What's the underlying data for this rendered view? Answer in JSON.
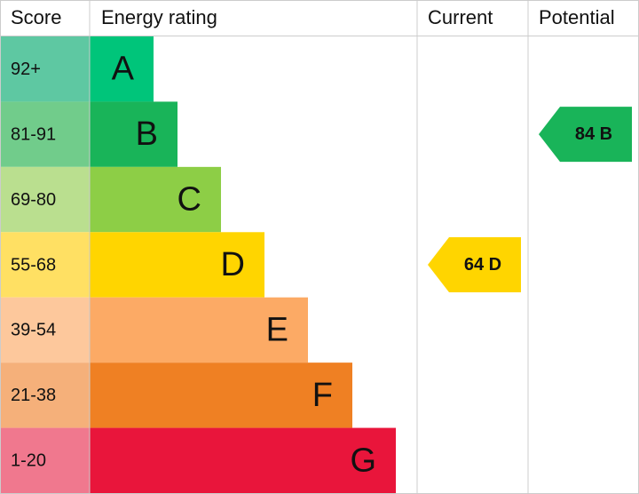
{
  "headers": [
    "Score",
    "Energy rating",
    "Current",
    "Potential"
  ],
  "bands": [
    {
      "score": "92+",
      "rating": "A",
      "color": "#00c57a",
      "score_color": "#5ec8a2"
    },
    {
      "score": "81-91",
      "rating": "B",
      "color": "#19b459",
      "score_color": "#71cc8b"
    },
    {
      "score": "69-80",
      "rating": "C",
      "color": "#8dce46",
      "score_color": "#badf8f"
    },
    {
      "score": "55-68",
      "rating": "D",
      "color": "#ffd500",
      "score_color": "#ffe063"
    },
    {
      "score": "39-54",
      "rating": "E",
      "color": "#fcaa65",
      "score_color": "#fdc89c"
    },
    {
      "score": "21-38",
      "rating": "F",
      "color": "#ef8023",
      "score_color": "#f5b07a"
    },
    {
      "score": "1-20",
      "rating": "G",
      "color": "#e9153b",
      "score_color": "#f0788e"
    }
  ],
  "current": {
    "value": 64,
    "rating": "D"
  },
  "potential": {
    "value": 84,
    "rating": "B"
  }
}
